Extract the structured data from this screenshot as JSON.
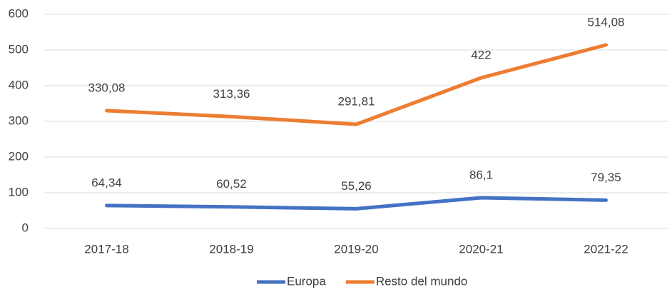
{
  "chart_data": {
    "type": "line",
    "categories": [
      "2017-18",
      "2018-19",
      "2019-20",
      "2020-21",
      "2021-22"
    ],
    "series": [
      {
        "name": "Europa",
        "color": "#4472c4",
        "values": [
          64.34,
          60.52,
          55.26,
          86.1,
          79.35
        ],
        "value_labels": [
          "64,34",
          "60,52",
          "55,26",
          "86,1",
          "79,35"
        ]
      },
      {
        "name": "Resto del mundo",
        "color": "#ed7d31",
        "values": [
          330.08,
          313.36,
          291.81,
          422,
          514.08
        ],
        "value_labels": [
          "330,08",
          "313,36",
          "291,81",
          "422",
          "514,08"
        ]
      }
    ],
    "ylim": [
      0,
      600
    ],
    "yticks": [
      0,
      100,
      200,
      300,
      400,
      500,
      600
    ],
    "grid": true,
    "legend": "bottom"
  }
}
